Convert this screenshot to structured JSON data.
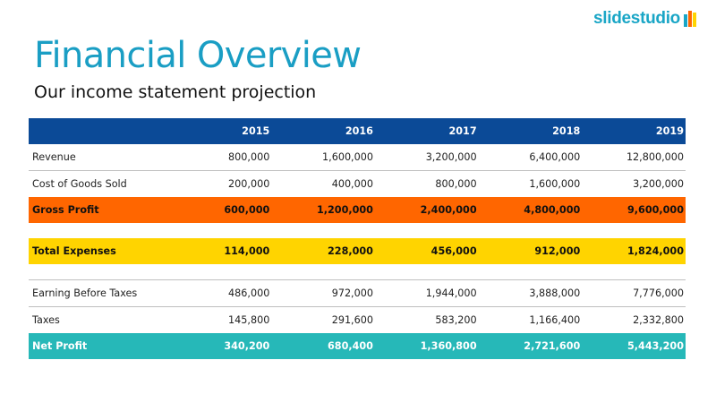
{
  "logo": {
    "text": "slidestudio",
    "colors": [
      "#1aa6c6",
      "#ff6600",
      "#ffd400"
    ]
  },
  "title": "Financial Overview",
  "subtitle": "Our income statement projection",
  "colors": {
    "header": "#0b4a97",
    "gross_profit": "#ff6600",
    "total_expenses": "#ffd400",
    "net_profit": "#26b8b8",
    "title": "#1a9ec4"
  },
  "table": {
    "corner": "",
    "years": [
      "2015",
      "2016",
      "2017",
      "2018",
      "2019"
    ],
    "rows": [
      {
        "label": "Revenue",
        "values": [
          "800,000",
          "1,600,000",
          "3,200,000",
          "6,400,000",
          "12,800,000"
        ]
      },
      {
        "label": "Cost of Goods Sold",
        "values": [
          "200,000",
          "400,000",
          "800,000",
          "1,600,000",
          "3,200,000"
        ]
      },
      {
        "label": "Gross Profit",
        "values": [
          "600,000",
          "1,200,000",
          "2,400,000",
          "4,800,000",
          "9,600,000"
        ]
      },
      {
        "label": "Total Expenses",
        "values": [
          "114,000",
          "228,000",
          "456,000",
          "912,000",
          "1,824,000"
        ]
      },
      {
        "label": "Earning Before Taxes",
        "values": [
          "486,000",
          "972,000",
          "1,944,000",
          "3,888,000",
          "7,776,000"
        ]
      },
      {
        "label": "Taxes",
        "values": [
          "145,800",
          "291,600",
          "583,200",
          "1,166,400",
          "2,332,800"
        ]
      },
      {
        "label": "Net Profit",
        "values": [
          "340,200",
          "680,400",
          "1,360,800",
          "2,721,600",
          "5,443,200"
        ]
      }
    ]
  }
}
